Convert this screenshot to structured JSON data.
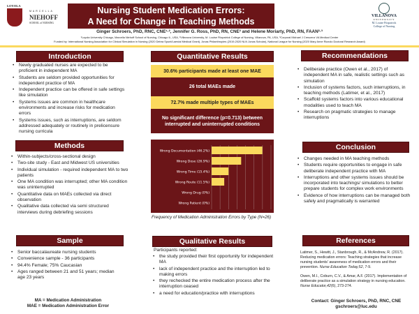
{
  "header": {
    "left_logo": {
      "line1": "LOYOLA",
      "line2": "MARCELLA",
      "line3": "NIEHOFF",
      "line4": "SCHOOL of NURSING"
    },
    "title_line1": "Nursing Student Medication Errors:",
    "title_line2": "A Need for Change in Teaching Methods",
    "authors": "Ginger Schroers, PhD, RNC, CNE¹·², Jennifer G. Ross, PhD, RN, CNE² and Helene Moriarty, PhD, RN, FAAN²·³",
    "affiliations": "¹Loyola University Chicago, Marcella Niehoff School of Nursing, Chicago IL, USA, ²Villanova University, M. Louise Fitzpatrick College of Nursing, Villanova, PA, USA, ³Corporal Michael J Crescenz VA Medical Center",
    "funding": "Funded by: International Nursing Association for Clinical Simulation in Nursing (2020 Debra Spunt/Laerdal Medical Grant), Jonas Philanthropies (2019-2020 NLN Jonas Scholar), National League for Nursing (2020 Mary Anne Rizzolo Doctoral Research Award)",
    "right_logo": {
      "line1": "VILLANOVA",
      "line2": "UNIVERSITY",
      "line3": "M. Louise Fitzpatrick",
      "line4": "College of Nursing"
    }
  },
  "colors": {
    "maroon": "#6b1518",
    "yellow": "#fbd95d"
  },
  "introduction": {
    "title": "Introduction",
    "items": [
      "Newly graduated nurses are expected to be proficient in independent MA",
      "Students are seldom provided opportunities for independent practice of MA",
      "Independent practice can be offered in safe settings like simulation",
      "Systems issues are common in healthcare environments and increase risks for medication errors",
      "Systems issues, such as interruptions, are seldom addressed adequately or routinely in prelicensure nursing curricula"
    ]
  },
  "methods": {
    "title": "Methods",
    "items": [
      "Within-subjects/cross-sectional design",
      "Two-site study - East and Midwest US universities",
      "Individual simulation - required independent MA to two patients",
      "One MA condition was interrupted; other MA condition was uninterrupted",
      "Quantitative data on MAEs collected via direct observation",
      "Qualitative data collected via semi structured interviews during debriefing sessions"
    ]
  },
  "sample": {
    "title": "Sample",
    "items": [
      "Senior baccalaureate nursing students",
      "Convenience sample - 36 participants",
      "94.4% Female; 75% Caucasian",
      "Ages ranged between 21 and 51 years; median age 23 years"
    ]
  },
  "abbreviations": [
    "MA = Medication Administration",
    "MAE = Medication Administration Error"
  ],
  "quantitative": {
    "title": "Quantitative Results",
    "boxes": [
      "30.6% participants made at least one MAE",
      "26 total MAEs made",
      "72.7% made multiple types of MAEs",
      "No significant difference (p=0.713) between interrupted and uninterrupted conditions"
    ],
    "caption": "Frequency of Medication Administration Errors by Type (N=26)"
  },
  "chart_data": {
    "type": "bar",
    "orientation": "horizontal",
    "categories": [
      "Wrong Documentation (46.2%)",
      "Wrong Dose (26.9%)",
      "Wrong Time (15.4%)",
      "Wrong Route (11.5%)",
      "Wrong Drug (0%)",
      "Wrong Patient (0%)"
    ],
    "values": [
      46.2,
      26.9,
      15.4,
      11.5,
      0,
      0
    ],
    "xlim": [
      0,
      54
    ],
    "grid": true,
    "bar_color": "#fbd95d",
    "background": "#6b1518"
  },
  "qualitative": {
    "title": "Qualitative Results",
    "intro": "Participants reported:",
    "items": [
      "the study provided their first opportunity for independent MA",
      "lack of independent practice and the interruption led to making errors",
      "they rechecked the entire medication process after the interruption ceased",
      "a need for education/practice with interruptions"
    ]
  },
  "recommendations": {
    "title": "Recommendations",
    "items": [
      "Deliberate practice (Owen et al., 2017) of independent MA in safe, realistic settings such as simulation",
      "Inclusion of systems factors, such interruptions, in teaching methods (Latimer, et al., 2017)",
      "Scaffold systems factors into various educational modalities used to teach MA",
      "Research on pragmatic strategies to manage interruptions"
    ]
  },
  "conclusion": {
    "title": "Conclusion",
    "items": [
      "Changes needed in MA teaching methods",
      "Students require opportunities to engage in safe deliberate independent practice with MA",
      "Interruptions and other systems issues should be incorporated into teachings/ simulations to better prepare students for complex work environments",
      "Evidence of how interruptions can be managed both safely and pragmatically is warranted"
    ]
  },
  "references": {
    "title": "References",
    "items": [
      {
        "text": "Latimer, S., Hewitt, J., Stanbrough, R., & McAndrew, R. (2017). Reducing medication errors: Teaching strategies that increase nursing students' awareness of medication errors and their prevention. ",
        "journal": "Nurse Education Today,52",
        "pages": ", 7-9."
      },
      {
        "text": "Owen, M.I., Coburn, C.V., & Amar, A.F. (2017). Implementation of deliberate practice as a simulation strategy in nursing education. ",
        "journal": "Nurse Educator,42",
        "pages": "(6), 273-274."
      }
    ]
  },
  "contact": {
    "name": "Contact: Ginger Schroers, PhD, RNC, CNE",
    "email": "gschroers@luc.edu"
  }
}
